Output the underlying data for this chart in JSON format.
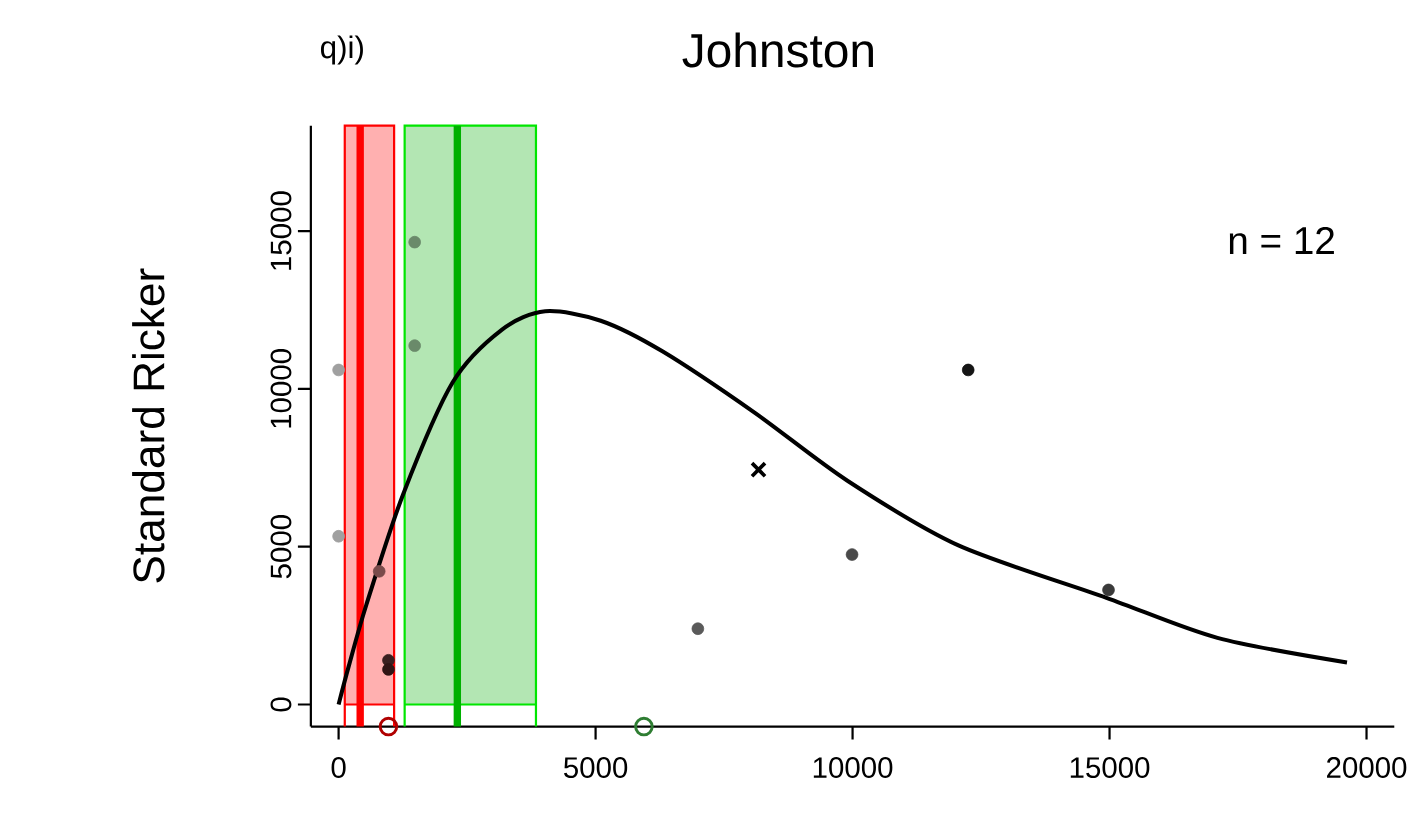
{
  "chart_data": {
    "type": "scatter",
    "title": "Johnston",
    "ylabel": "Standard Ricker",
    "annotations": [
      "q)i)",
      "n = 12"
    ],
    "xlim": [
      -540,
      20540
    ],
    "ylim": [
      -700,
      18340
    ],
    "xticks": [
      0,
      5000,
      10000,
      15000,
      20000
    ],
    "yticks": [
      0,
      5000,
      10000,
      15000
    ],
    "bands": [
      {
        "axis": "x",
        "from": 120,
        "to": 1080,
        "color": "#ffb0b0"
      },
      {
        "axis": "x",
        "from": 1285,
        "to": 3840,
        "color": "#b3e6b3"
      }
    ],
    "ref_lines": [
      {
        "axis": "x",
        "value": 420,
        "color": "#ff0000"
      },
      {
        "axis": "x",
        "value": 2310,
        "color": "#00b000"
      }
    ],
    "series": [
      {
        "x": [
          0,
          0,
          790,
          970,
          970,
          1480,
          1480,
          6990,
          9990,
          12250,
          14980
        ],
        "values": [
          10600,
          5330,
          4220,
          1400,
          1110,
          14650,
          11370,
          2400,
          4750,
          10600,
          3630
        ],
        "colors": [
          "#a0a0a0",
          "#a0a0a0",
          "#7a4a4a",
          "#3a2020",
          "#301515",
          "#6a8a6a",
          "#6a8a6a",
          "#5a5a5a",
          "#4a4a4a",
          "#151515",
          "#3a3a3a"
        ]
      },
      {
        "type": "line",
        "color": "#000000",
        "x": [
          0,
          200,
          540,
          1260,
          2220,
          3180,
          4020,
          5100,
          6300,
          8100,
          9900,
          12060,
          14940,
          17100,
          19620
        ],
        "values": [
          0,
          1230,
          3160,
          6680,
          10210,
          11880,
          12460,
          12160,
          11190,
          9240,
          7090,
          5040,
          3380,
          2110,
          1330
        ]
      },
      {
        "marker": "cross",
        "color": "#000000",
        "x": [
          8170
        ],
        "values": [
          7440
        ]
      },
      {
        "marker": "circle",
        "color": "#b00000",
        "x": [
          970
        ],
        "values": [
          -700
        ]
      },
      {
        "marker": "circle",
        "color": "#2e7d32",
        "x": [
          5940
        ],
        "values": [
          -700
        ]
      }
    ]
  }
}
